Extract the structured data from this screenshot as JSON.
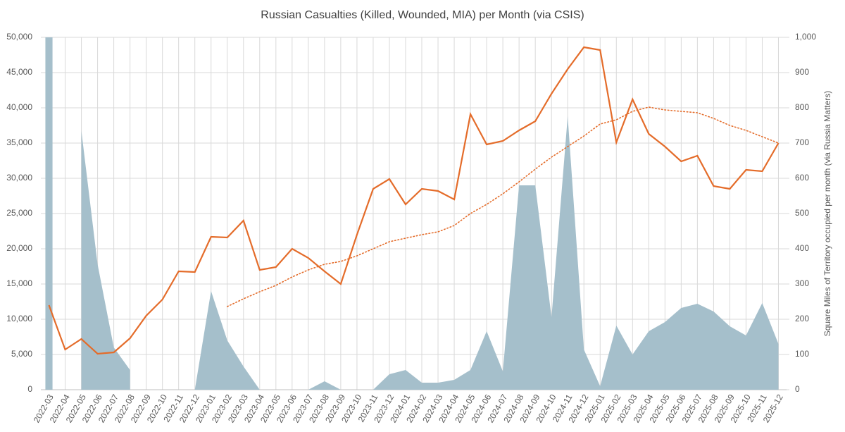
{
  "chart_data": {
    "type": "line",
    "title": "Russian Casualties (Killed, Wounded, MIA) per Month (via CSIS)",
    "y2_label": "Square Miles of Territory occupied per month (via Russia Matters)",
    "categories": [
      "2022-03",
      "2022-04",
      "2022-05",
      "2022-06",
      "2022-07",
      "2022-08",
      "2022-09",
      "2022-10",
      "2022-11",
      "2022-12",
      "2023-01",
      "2023-02",
      "2023-03",
      "2023-04",
      "2023-05",
      "2023-06",
      "2023-07",
      "2023-08",
      "2023-09",
      "2023-10",
      "2023-11",
      "2023-12",
      "2024-01",
      "2024-02",
      "2024-03",
      "2024-04",
      "2024-05",
      "2024-06",
      "2024-07",
      "2024-08",
      "2024-09",
      "2024-10",
      "2024-11",
      "2024-12",
      "2025-01",
      "2025-02",
      "2025-03",
      "2025-04",
      "2025-05",
      "2025-06",
      "2025-07",
      "2025-08",
      "2025-09",
      "2025-10",
      "2025-11",
      "2025-12"
    ],
    "series": [
      {
        "type": "area",
        "axis": "y2",
        "color": "#a5bfcb",
        "values": [
          1000,
          null,
          735,
          356,
          120,
          56,
          null,
          null,
          null,
          0,
          280,
          140,
          66,
          0,
          0,
          0,
          0,
          24,
          0,
          0,
          0,
          44,
          56,
          20,
          20,
          28,
          56,
          166,
          52,
          580,
          580,
          206,
          776,
          114,
          10,
          182,
          100,
          166,
          192,
          232,
          244,
          222,
          180,
          154,
          246,
          130
        ]
      },
      {
        "type": "line",
        "color": "#e46c2a",
        "values": [
          12000,
          5700,
          7200,
          5100,
          5300,
          7300,
          10500,
          12800,
          16800,
          16700,
          21700,
          21600,
          24000,
          17000,
          17400,
          20000,
          18700,
          16800,
          15000,
          22000,
          28500,
          29900,
          26300,
          28500,
          28200,
          27000,
          39100,
          34800,
          35300,
          36800,
          38100,
          42000,
          45500,
          48600,
          48200,
          35100,
          41200,
          36300,
          34500,
          32400,
          33200,
          28900,
          28500,
          31200,
          31000,
          35000
        ]
      },
      {
        "type": "line",
        "dash": "dotted",
        "color": "#e46c2a",
        "values": [
          null,
          null,
          null,
          null,
          null,
          null,
          null,
          null,
          null,
          null,
          null,
          11800,
          12900,
          13900,
          14800,
          16000,
          17000,
          17800,
          18200,
          19000,
          20000,
          21000,
          21500,
          22000,
          22400,
          23300,
          25000,
          26300,
          27800,
          29500,
          31300,
          33000,
          34500,
          36000,
          37700,
          38300,
          39500,
          40100,
          39700,
          39500,
          39300,
          38500,
          37500,
          36800,
          35900,
          35000
        ]
      }
    ],
    "ylim": [
      0,
      50000
    ],
    "yticks": [
      0,
      {
        "value": 5000,
        "label": "5,000"
      },
      {
        "value": 10000,
        "label": "10,000"
      },
      {
        "value": 15000,
        "label": "15,000"
      },
      {
        "value": 20000,
        "label": "20,000"
      },
      {
        "value": 25000,
        "label": "25,000"
      },
      {
        "value": 30000,
        "label": "30,000"
      },
      {
        "value": 35000,
        "label": "35,000"
      },
      {
        "value": 40000,
        "label": "40,000"
      },
      {
        "value": 45000,
        "label": "45,000"
      },
      {
        "value": 50000,
        "label": "50,000"
      }
    ],
    "y2lim": [
      0,
      1000
    ],
    "y2ticks": [
      0,
      100,
      200,
      300,
      400,
      500,
      600,
      700,
      800,
      900,
      {
        "value": 1000,
        "label": "1,000"
      }
    ],
    "grid": true
  }
}
